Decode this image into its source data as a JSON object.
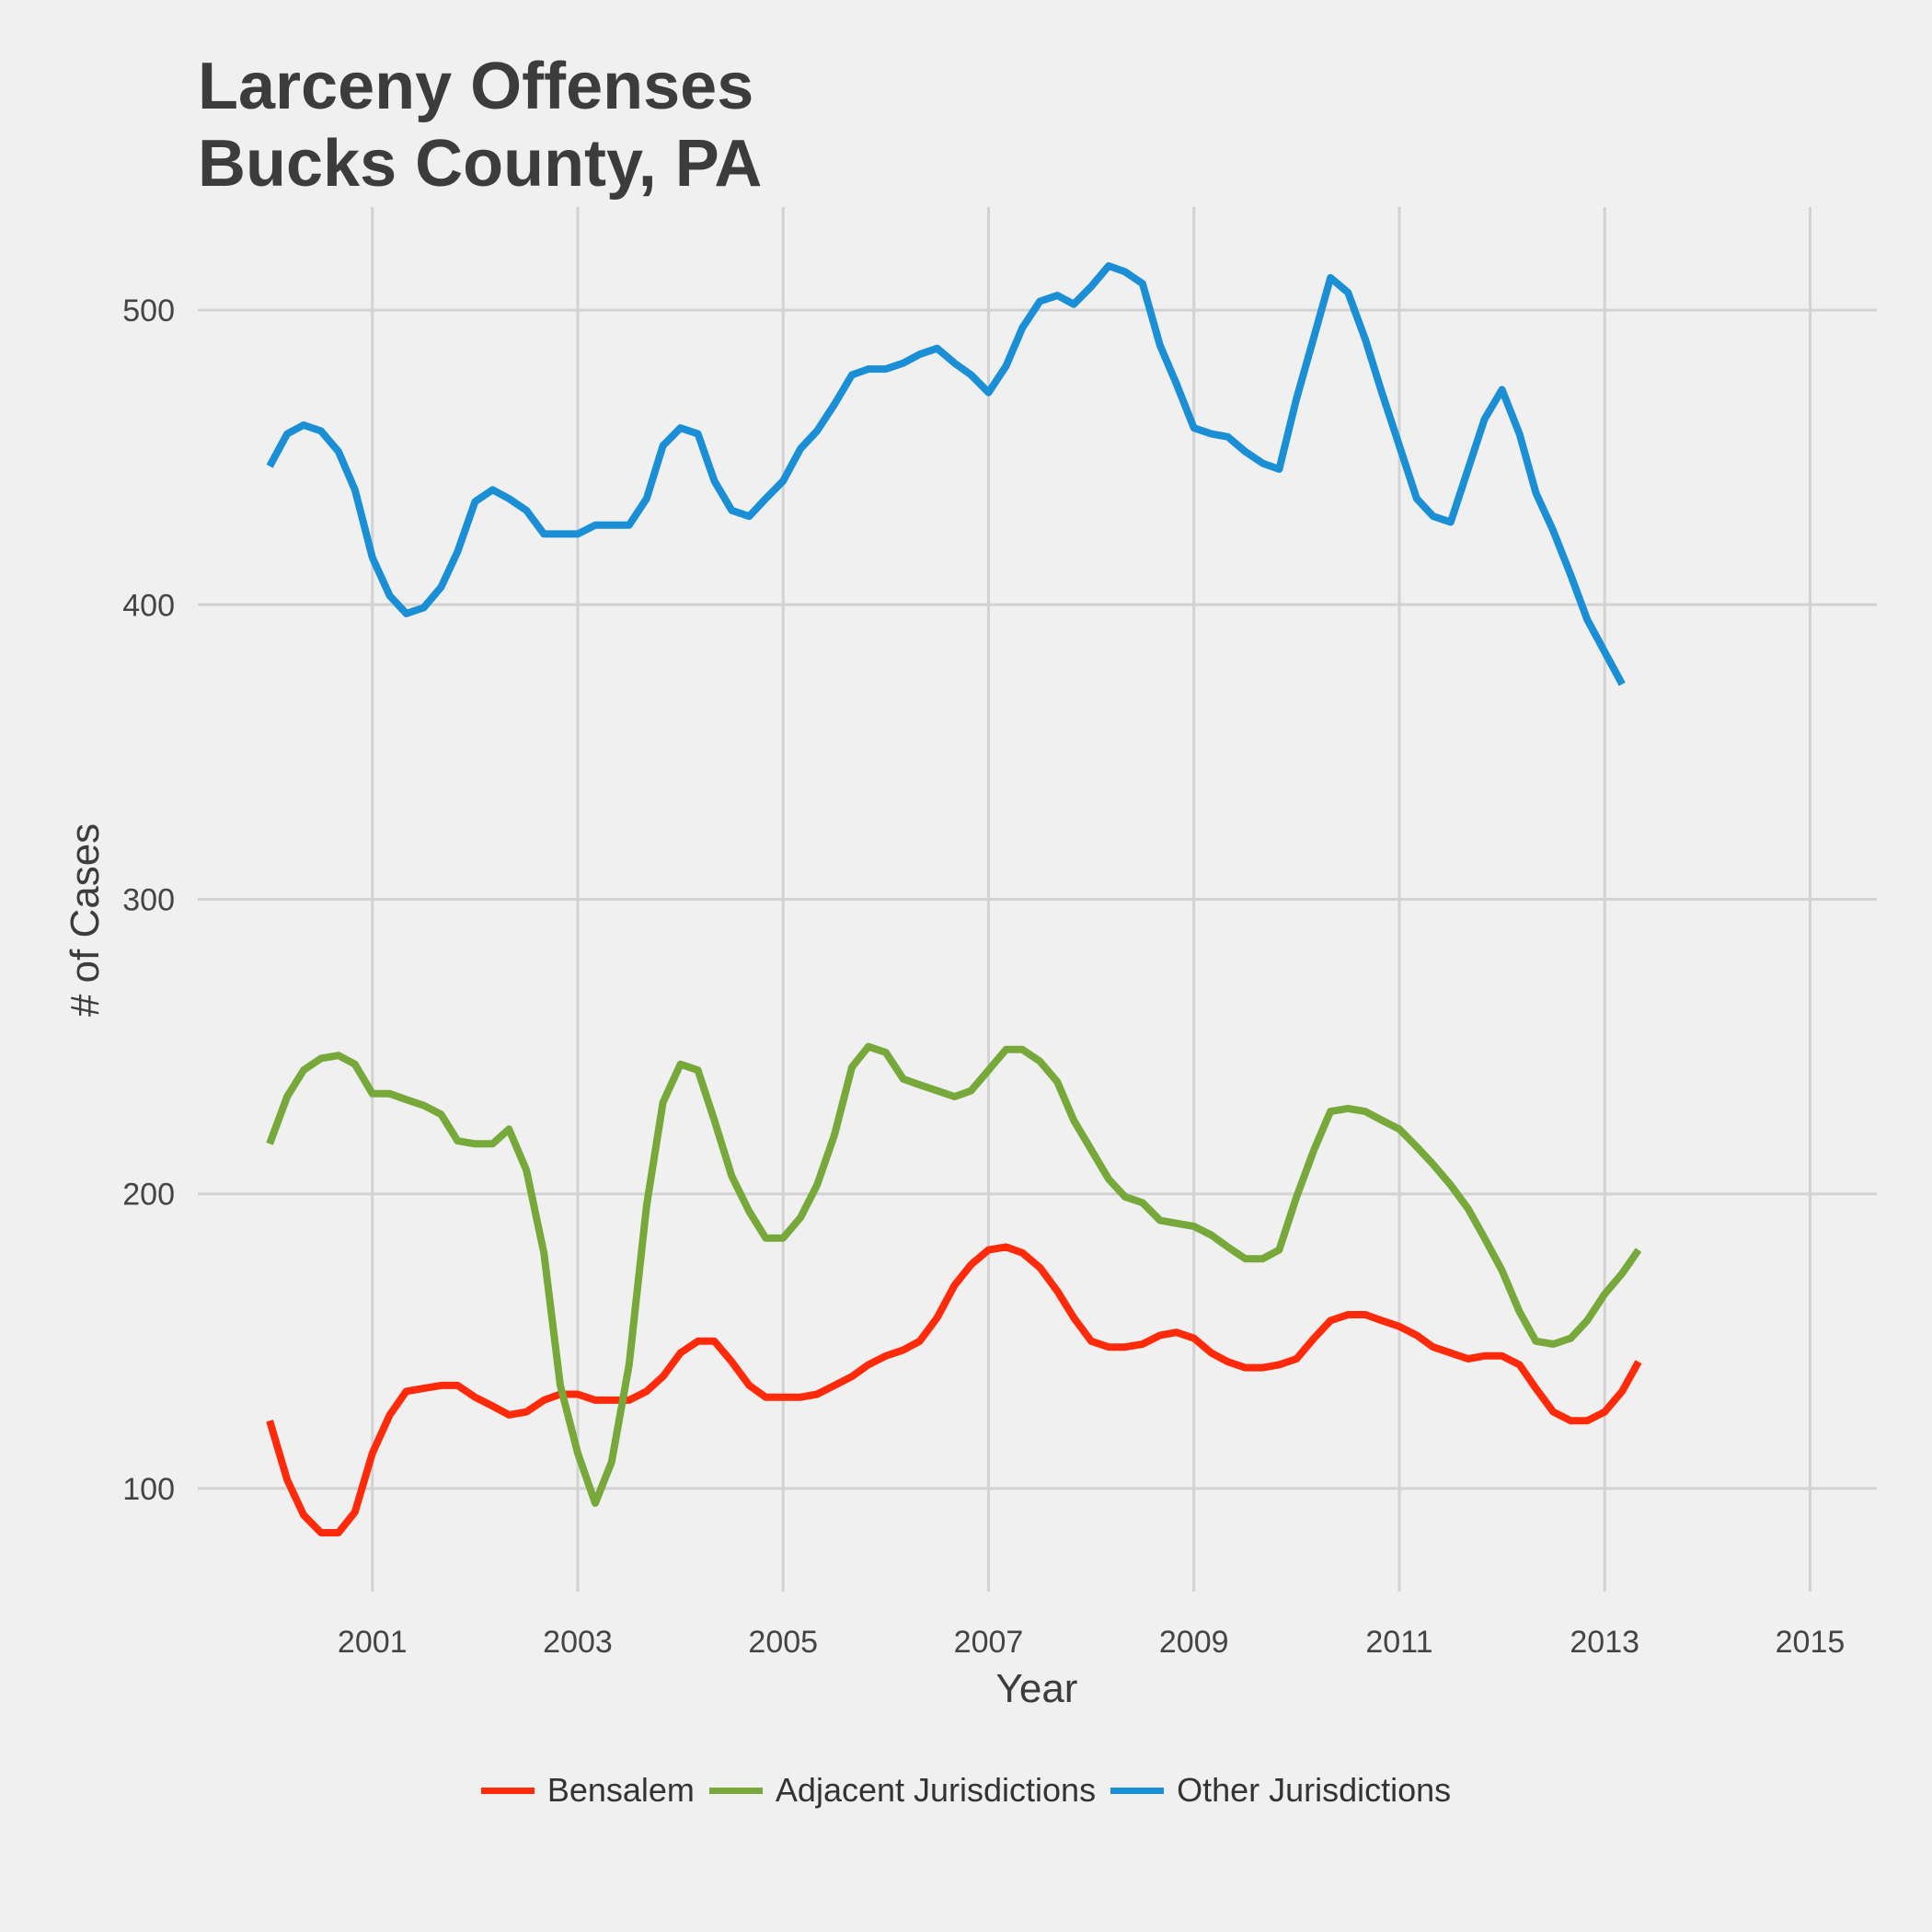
{
  "chart_data": {
    "type": "line",
    "title_lines": [
      "Larceny Offenses",
      "Bucks County, PA"
    ],
    "xlabel": "Year",
    "ylabel": "# of Cases",
    "x_ticks": [
      "2001",
      "2003",
      "2005",
      "2007",
      "2009",
      "2011",
      "2013",
      "2015"
    ],
    "y_ticks": [
      "100",
      "200",
      "300",
      "400",
      "500"
    ],
    "xlim": [
      1999.3,
      2015.65
    ],
    "ylim": [
      65,
      535
    ],
    "grid": true,
    "legend_position": "bottom",
    "series": [
      {
        "name": "Bensalem",
        "color": "#ff2a0a",
        "points": [
          [
            2000.0,
            123
          ],
          [
            2000.17,
            103
          ],
          [
            2000.33,
            91
          ],
          [
            2000.5,
            85
          ],
          [
            2000.67,
            85
          ],
          [
            2000.83,
            92
          ],
          [
            2001.0,
            112
          ],
          [
            2001.17,
            125
          ],
          [
            2001.33,
            133
          ],
          [
            2001.5,
            134
          ],
          [
            2001.67,
            135
          ],
          [
            2001.83,
            135
          ],
          [
            2002.0,
            131
          ],
          [
            2002.17,
            128
          ],
          [
            2002.33,
            125
          ],
          [
            2002.5,
            126
          ],
          [
            2002.67,
            130
          ],
          [
            2002.83,
            132
          ],
          [
            2003.0,
            132
          ],
          [
            2003.17,
            130
          ],
          [
            2003.33,
            130
          ],
          [
            2003.5,
            130
          ],
          [
            2003.67,
            133
          ],
          [
            2003.83,
            138
          ],
          [
            2004.0,
            146
          ],
          [
            2004.17,
            150
          ],
          [
            2004.33,
            150
          ],
          [
            2004.5,
            143
          ],
          [
            2004.67,
            135
          ],
          [
            2004.83,
            131
          ],
          [
            2005.0,
            131
          ],
          [
            2005.17,
            131
          ],
          [
            2005.33,
            132
          ],
          [
            2005.5,
            135
          ],
          [
            2005.67,
            138
          ],
          [
            2005.83,
            142
          ],
          [
            2006.0,
            145
          ],
          [
            2006.17,
            147
          ],
          [
            2006.33,
            150
          ],
          [
            2006.5,
            158
          ],
          [
            2006.67,
            169
          ],
          [
            2006.83,
            176
          ],
          [
            2007.0,
            181
          ],
          [
            2007.17,
            182
          ],
          [
            2007.33,
            180
          ],
          [
            2007.5,
            175
          ],
          [
            2007.67,
            167
          ],
          [
            2007.83,
            158
          ],
          [
            2008.0,
            150
          ],
          [
            2008.17,
            148
          ],
          [
            2008.33,
            148
          ],
          [
            2008.5,
            149
          ],
          [
            2008.67,
            152
          ],
          [
            2008.83,
            153
          ],
          [
            2009.0,
            151
          ],
          [
            2009.17,
            146
          ],
          [
            2009.33,
            143
          ],
          [
            2009.5,
            141
          ],
          [
            2009.67,
            141
          ],
          [
            2009.83,
            142
          ],
          [
            2010.0,
            144
          ],
          [
            2010.17,
            151
          ],
          [
            2010.33,
            157
          ],
          [
            2010.5,
            159
          ],
          [
            2010.67,
            159
          ],
          [
            2010.83,
            157
          ],
          [
            2011.0,
            155
          ],
          [
            2011.17,
            152
          ],
          [
            2011.33,
            148
          ],
          [
            2011.5,
            146
          ],
          [
            2011.67,
            144
          ],
          [
            2011.83,
            145
          ],
          [
            2012.0,
            145
          ],
          [
            2012.17,
            142
          ],
          [
            2012.33,
            134
          ],
          [
            2012.5,
            126
          ],
          [
            2012.67,
            123
          ],
          [
            2012.83,
            123
          ],
          [
            2013.0,
            126
          ],
          [
            2013.17,
            133
          ],
          [
            2013.33,
            143
          ]
        ]
      },
      {
        "name": "Adjacent Jurisdictions",
        "color": "#76a83a",
        "points": [
          [
            2000.0,
            217
          ],
          [
            2000.17,
            233
          ],
          [
            2000.33,
            242
          ],
          [
            2000.5,
            246
          ],
          [
            2000.67,
            247
          ],
          [
            2000.83,
            244
          ],
          [
            2001.0,
            234
          ],
          [
            2001.17,
            234
          ],
          [
            2001.33,
            232
          ],
          [
            2001.5,
            230
          ],
          [
            2001.67,
            227
          ],
          [
            2001.83,
            218
          ],
          [
            2002.0,
            217
          ],
          [
            2002.17,
            217
          ],
          [
            2002.33,
            222
          ],
          [
            2002.5,
            208
          ],
          [
            2002.67,
            180
          ],
          [
            2002.83,
            135
          ],
          [
            2003.0,
            112
          ],
          [
            2003.17,
            95
          ],
          [
            2003.33,
            109
          ],
          [
            2003.5,
            142
          ],
          [
            2003.67,
            196
          ],
          [
            2003.83,
            231
          ],
          [
            2004.0,
            244
          ],
          [
            2004.17,
            242
          ],
          [
            2004.33,
            225
          ],
          [
            2004.5,
            206
          ],
          [
            2004.67,
            194
          ],
          [
            2004.83,
            185
          ],
          [
            2005.0,
            185
          ],
          [
            2005.17,
            192
          ],
          [
            2005.33,
            203
          ],
          [
            2005.5,
            220
          ],
          [
            2005.67,
            243
          ],
          [
            2005.83,
            250
          ],
          [
            2006.0,
            248
          ],
          [
            2006.17,
            239
          ],
          [
            2006.33,
            237
          ],
          [
            2006.5,
            235
          ],
          [
            2006.67,
            233
          ],
          [
            2006.83,
            235
          ],
          [
            2007.0,
            242
          ],
          [
            2007.17,
            249
          ],
          [
            2007.33,
            249
          ],
          [
            2007.5,
            245
          ],
          [
            2007.67,
            238
          ],
          [
            2007.83,
            225
          ],
          [
            2008.0,
            215
          ],
          [
            2008.17,
            205
          ],
          [
            2008.33,
            199
          ],
          [
            2008.5,
            197
          ],
          [
            2008.67,
            191
          ],
          [
            2008.83,
            190
          ],
          [
            2009.0,
            189
          ],
          [
            2009.17,
            186
          ],
          [
            2009.33,
            182
          ],
          [
            2009.5,
            178
          ],
          [
            2009.67,
            178
          ],
          [
            2009.83,
            181
          ],
          [
            2010.0,
            199
          ],
          [
            2010.17,
            215
          ],
          [
            2010.33,
            228
          ],
          [
            2010.5,
            229
          ],
          [
            2010.67,
            228
          ],
          [
            2010.83,
            225
          ],
          [
            2011.0,
            222
          ],
          [
            2011.17,
            216
          ],
          [
            2011.33,
            210
          ],
          [
            2011.5,
            203
          ],
          [
            2011.67,
            195
          ],
          [
            2011.83,
            185
          ],
          [
            2012.0,
            174
          ],
          [
            2012.17,
            160
          ],
          [
            2012.33,
            150
          ],
          [
            2012.5,
            149
          ],
          [
            2012.67,
            151
          ],
          [
            2012.83,
            157
          ],
          [
            2013.0,
            166
          ],
          [
            2013.17,
            173
          ],
          [
            2013.33,
            181
          ]
        ]
      },
      {
        "name": "Other Jurisdictions",
        "color": "#1a8fd6",
        "points": [
          [
            2000.0,
            447
          ],
          [
            2000.17,
            458
          ],
          [
            2000.33,
            461
          ],
          [
            2000.5,
            459
          ],
          [
            2000.67,
            452
          ],
          [
            2000.83,
            439
          ],
          [
            2001.0,
            416
          ],
          [
            2001.17,
            403
          ],
          [
            2001.33,
            397
          ],
          [
            2001.5,
            399
          ],
          [
            2001.67,
            406
          ],
          [
            2001.83,
            418
          ],
          [
            2002.0,
            435
          ],
          [
            2002.17,
            439
          ],
          [
            2002.33,
            436
          ],
          [
            2002.5,
            432
          ],
          [
            2002.67,
            424
          ],
          [
            2002.83,
            424
          ],
          [
            2003.0,
            424
          ],
          [
            2003.17,
            427
          ],
          [
            2003.33,
            427
          ],
          [
            2003.5,
            427
          ],
          [
            2003.67,
            436
          ],
          [
            2003.83,
            454
          ],
          [
            2004.0,
            460
          ],
          [
            2004.17,
            458
          ],
          [
            2004.33,
            442
          ],
          [
            2004.5,
            432
          ],
          [
            2004.67,
            430
          ],
          [
            2004.83,
            436
          ],
          [
            2005.0,
            442
          ],
          [
            2005.17,
            453
          ],
          [
            2005.33,
            459
          ],
          [
            2005.5,
            468
          ],
          [
            2005.67,
            478
          ],
          [
            2005.83,
            480
          ],
          [
            2006.0,
            480
          ],
          [
            2006.17,
            482
          ],
          [
            2006.33,
            485
          ],
          [
            2006.5,
            487
          ],
          [
            2006.67,
            482
          ],
          [
            2006.83,
            478
          ],
          [
            2007.0,
            472
          ],
          [
            2007.17,
            481
          ],
          [
            2007.33,
            494
          ],
          [
            2007.5,
            503
          ],
          [
            2007.67,
            505
          ],
          [
            2007.83,
            502
          ],
          [
            2008.0,
            508
          ],
          [
            2008.17,
            515
          ],
          [
            2008.33,
            513
          ],
          [
            2008.5,
            509
          ],
          [
            2008.67,
            488
          ],
          [
            2008.83,
            475
          ],
          [
            2009.0,
            460
          ],
          [
            2009.17,
            458
          ],
          [
            2009.33,
            457
          ],
          [
            2009.5,
            452
          ],
          [
            2009.67,
            448
          ],
          [
            2009.83,
            446
          ],
          [
            2010.0,
            470
          ],
          [
            2010.17,
            491
          ],
          [
            2010.33,
            511
          ],
          [
            2010.5,
            506
          ],
          [
            2010.67,
            490
          ],
          [
            2010.83,
            472
          ],
          [
            2011.0,
            454
          ],
          [
            2011.17,
            436
          ],
          [
            2011.33,
            430
          ],
          [
            2011.5,
            428
          ],
          [
            2011.67,
            446
          ],
          [
            2011.83,
            463
          ],
          [
            2012.0,
            473
          ],
          [
            2012.17,
            458
          ],
          [
            2012.33,
            438
          ],
          [
            2012.5,
            425
          ],
          [
            2012.67,
            410
          ],
          [
            2012.83,
            395
          ],
          [
            2013.0,
            384
          ],
          [
            2013.17,
            373
          ]
        ]
      }
    ]
  }
}
